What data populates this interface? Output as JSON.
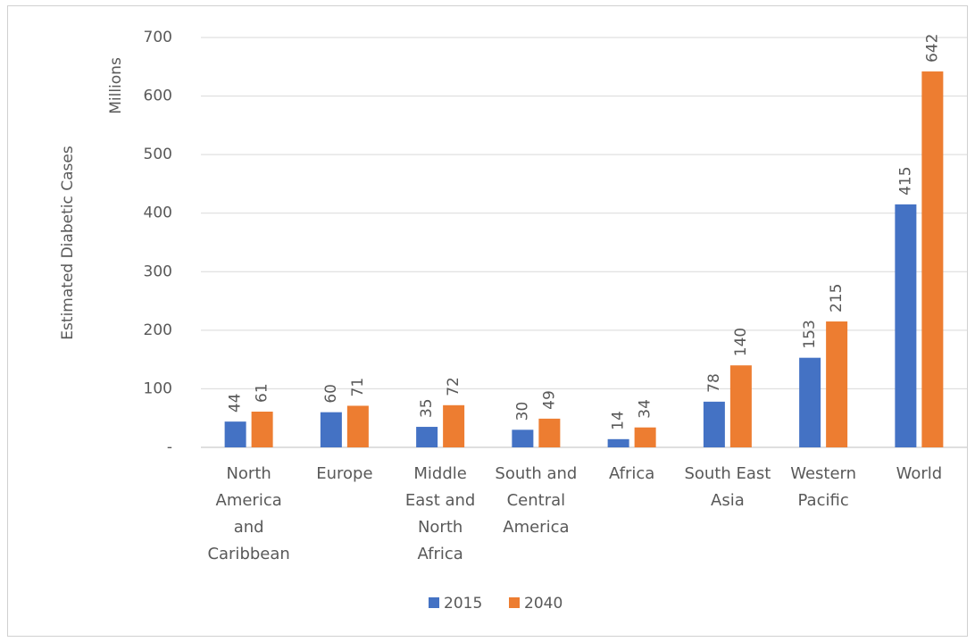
{
  "chart_data": {
    "type": "bar",
    "y_axis_label": "Estimated Diabetic Cases",
    "y_display_unit": "Millions",
    "categories": [
      "North America and Caribbean",
      "Europe",
      "Middle East and North Africa",
      "South and Central America",
      "Africa",
      "South East Asia",
      "Western Pacific",
      "World"
    ],
    "series": [
      {
        "name": "2015",
        "color": "#4472c4",
        "values": [
          44,
          60,
          35,
          30,
          14,
          78,
          153,
          415
        ]
      },
      {
        "name": "2040",
        "color": "#ed7d31",
        "values": [
          61,
          71,
          72,
          49,
          34,
          140,
          215,
          642
        ]
      }
    ],
    "ylim": [
      0,
      700
    ],
    "yticks": [
      {
        "value": 0,
        "label": "-"
      },
      100,
      200,
      300,
      400,
      500,
      600,
      700
    ],
    "grid": true,
    "legend": "bottom"
  }
}
